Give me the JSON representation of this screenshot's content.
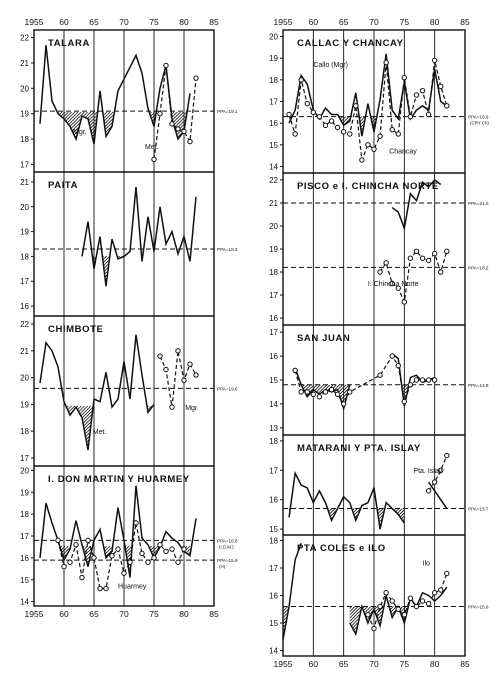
{
  "chart_data": [
    {
      "type": "line",
      "title": "TALARA",
      "ylim": [
        16.7,
        22.3
      ],
      "yticks": [
        17,
        18,
        19,
        20,
        21,
        22
      ],
      "ref": {
        "y": 19.1,
        "label": "PPA=19.1"
      },
      "series": [
        {
          "style": "solid",
          "x": [
            1956,
            1957,
            1958,
            1959,
            1960,
            1961,
            1962,
            1963,
            1964,
            1965,
            1966,
            1967,
            1968,
            1969,
            1972,
            1973,
            1974,
            1975,
            1976,
            1977,
            1978,
            1979,
            1980,
            1981
          ],
          "y": [
            18.6,
            21.7,
            19.5,
            19.0,
            18.8,
            18.5,
            18.0,
            18.9,
            18.8,
            17.8,
            19.9,
            18.1,
            18.5,
            19.9,
            21.3,
            20.6,
            19.2,
            18.5,
            20.0,
            20.9,
            18.8,
            18.0,
            18.3,
            19.8
          ]
        },
        {
          "style": "dashed",
          "x": [
            1975,
            1976,
            1977,
            1978,
            1979,
            1980,
            1981,
            1982
          ],
          "y": [
            17.2,
            19.0,
            20.9,
            18.6,
            18.4,
            18.3,
            17.9,
            20.4
          ]
        }
      ],
      "labels": [
        {
          "text": "Mgr.",
          "x": 1961.5,
          "y": 18.2
        },
        {
          "text": "Met.",
          "x": 1973.5,
          "y": 17.6
        }
      ]
    },
    {
      "type": "line",
      "title": "PAITA",
      "ylim": [
        15.6,
        21.4
      ],
      "yticks": [
        16,
        17,
        18,
        19,
        20,
        21
      ],
      "ref": {
        "y": 18.3,
        "label": "PPA=18.3"
      },
      "series": [
        {
          "style": "solid",
          "x": [
            1963,
            1964,
            1965,
            1966,
            1967,
            1968,
            1969,
            1970,
            1971,
            1972,
            1973,
            1974,
            1975,
            1976,
            1977,
            1978,
            1979,
            1980,
            1981,
            1982
          ],
          "y": [
            18.0,
            19.4,
            17.5,
            18.8,
            16.8,
            18.7,
            17.9,
            18.0,
            18.2,
            20.8,
            17.8,
            19.6,
            18.2,
            20.0,
            18.5,
            19.0,
            18.1,
            18.8,
            17.8,
            20.4
          ]
        }
      ]
    },
    {
      "type": "line",
      "title": "CHIMBOTE",
      "ylim": [
        16.7,
        22.3
      ],
      "yticks": [
        17,
        18,
        19,
        20,
        21,
        22
      ],
      "ref": {
        "y": 19.6,
        "label": "PPA=19.6"
      },
      "series": [
        {
          "style": "solid",
          "x": [
            1956,
            1957,
            1958,
            1959,
            1960,
            1961,
            1962,
            1963,
            1964,
            1965,
            1966,
            1967,
            1968,
            1969,
            1970,
            1971,
            1972,
            1973,
            1974,
            1975
          ],
          "y": [
            19.8,
            21.3,
            21.0,
            20.4,
            19.1,
            18.6,
            18.9,
            18.5,
            17.3,
            19.2,
            19.1,
            20.2,
            18.9,
            19.2,
            20.6,
            19.2,
            21.6,
            20.1,
            18.7,
            19.0
          ]
        },
        {
          "style": "dashed",
          "x": [
            1976,
            1977,
            1978,
            1979,
            1980,
            1981,
            1982
          ],
          "y": [
            20.8,
            20.3,
            18.9,
            21.0,
            19.9,
            20.5,
            20.1
          ]
        }
      ],
      "labels": [
        {
          "text": "Met.",
          "x": 1964.8,
          "y": 17.9
        },
        {
          "text": "Mgr.",
          "x": 1980.2,
          "y": 18.8
        }
      ]
    },
    {
      "type": "line",
      "title": "I. DON MARTIN Y HUARMEY",
      "ylim": [
        13.8,
        20.2
      ],
      "yticks": [
        14,
        15,
        16,
        17,
        18,
        19,
        20
      ],
      "ref": [
        {
          "y": 16.8,
          "label": "PPA=16.8",
          "sub": "(I.D.M.)"
        },
        {
          "y": 15.9,
          "label": "PPA=15.9",
          "sub": "(H)"
        }
      ],
      "series": [
        {
          "style": "solid",
          "x": [
            1956,
            1957,
            1958,
            1959,
            1960,
            1961,
            1962,
            1963,
            1964,
            1965,
            1966,
            1967,
            1968,
            1969,
            1970,
            1971,
            1972,
            1973,
            1974,
            1975,
            1976,
            1977,
            1978,
            1979,
            1980,
            1981,
            1982
          ],
          "y": [
            16.0,
            18.5,
            17.6,
            16.8,
            15.9,
            16.4,
            17.7,
            16.6,
            15.6,
            16.8,
            17.3,
            16.0,
            16.3,
            18.3,
            16.8,
            15.1,
            19.3,
            16.9,
            16.6,
            16.0,
            16.5,
            17.2,
            16.9,
            16.7,
            16.3,
            16.1,
            17.8
          ]
        },
        {
          "style": "dashed",
          "x": [
            1959,
            1960,
            1961,
            1962,
            1963,
            1964,
            1965,
            1966,
            1967,
            1968,
            1969,
            1970,
            1971,
            1972,
            1973,
            1974,
            1975,
            1976,
            1977,
            1978,
            1979,
            1980
          ],
          "y": [
            16.8,
            15.6,
            15.8,
            16.6,
            15.1,
            16.8,
            16.0,
            14.6,
            14.6,
            16.1,
            16.4,
            15.3,
            15.8,
            17.6,
            16.2,
            15.8,
            16.0,
            16.6,
            16.3,
            16.4,
            15.8,
            16.4
          ]
        }
      ],
      "labels": [
        {
          "text": "Huarmey",
          "x": 1969.0,
          "y": 14.6
        }
      ]
    },
    {
      "type": "line",
      "title": "CALLAC Y CHANCAY",
      "ylim": [
        13.7,
        20.3
      ],
      "yticks": [
        14,
        15,
        16,
        17,
        18,
        19,
        20
      ],
      "ref": {
        "y": 16.3,
        "label": "PPA=16.3",
        "sub": "(CRY Ch)"
      },
      "series": [
        {
          "style": "solid",
          "x": [
            1956,
            1957,
            1958,
            1959,
            1960,
            1961,
            1962,
            1963,
            1964,
            1965,
            1966,
            1967,
            1968,
            1969,
            1970,
            1971,
            1972,
            1973,
            1974,
            1975,
            1976,
            1977,
            1978,
            1979,
            1980,
            1981,
            1982
          ],
          "y": [
            16.0,
            16.6,
            18.2,
            17.8,
            16.6,
            16.2,
            16.7,
            16.4,
            16.4,
            15.9,
            16.1,
            17.4,
            15.4,
            16.9,
            15.6,
            17.1,
            19.2,
            16.6,
            16.2,
            17.9,
            16.2,
            16.6,
            16.8,
            16.6,
            18.5,
            17.0,
            16.8
          ]
        },
        {
          "style": "dashed",
          "x": [
            1956,
            1957,
            1958,
            1959,
            1960,
            1961,
            1962,
            1963,
            1964,
            1965,
            1966,
            1967,
            1968,
            1969,
            1970,
            1971,
            1972,
            1973,
            1974,
            1975,
            1976,
            1977,
            1978,
            1979,
            1980,
            1981,
            1982
          ],
          "y": [
            16.4,
            15.5,
            18.0,
            16.9,
            16.5,
            16.3,
            15.9,
            16.1,
            15.8,
            15.6,
            15.5,
            16.8,
            14.3,
            15.0,
            14.8,
            15.4,
            18.8,
            15.7,
            15.5,
            18.1,
            16.3,
            17.3,
            17.5,
            16.4,
            18.9,
            17.7,
            16.8
          ]
        }
      ],
      "labels": [
        {
          "text": "Callo (Mgr)",
          "x": 1960.0,
          "y": 18.6
        },
        {
          "text": "Chancay",
          "x": 1972.5,
          "y": 14.6
        }
      ]
    },
    {
      "type": "line",
      "title": "PISCO e I. CHINCHA NORTE",
      "ylim": [
        15.7,
        22.3
      ],
      "yticks": [
        16,
        17,
        18,
        19,
        20,
        21,
        22
      ],
      "ref": [
        {
          "y": 21.0,
          "label": "PPA=21.0"
        },
        {
          "y": 18.2,
          "label": "PPA=18.2"
        }
      ],
      "series": [
        {
          "style": "solid",
          "x": [
            1973,
            1974,
            1975,
            1976,
            1977,
            1978,
            1979,
            1980,
            1981
          ],
          "y": [
            20.8,
            20.6,
            19.9,
            21.4,
            21.1,
            21.9,
            21.7,
            22.0,
            21.8
          ]
        },
        {
          "style": "dashed",
          "x": [
            1971,
            1972,
            1973,
            1974,
            1975,
            1976,
            1977,
            1978,
            1979,
            1980,
            1981,
            1982
          ],
          "y": [
            18.0,
            18.4,
            17.5,
            17.3,
            16.7,
            18.6,
            18.9,
            18.6,
            18.5,
            18.8,
            18.0,
            18.9
          ]
        }
      ],
      "labels": [
        {
          "text": "I. Chincha Norte",
          "x": 1969.0,
          "y": 17.4
        }
      ]
    },
    {
      "type": "line",
      "title": "SAN JUAN",
      "ylim": [
        12.7,
        17.3
      ],
      "yticks": [
        13,
        14,
        15,
        16,
        17
      ],
      "ref": {
        "y": 14.8,
        "label": "PPA=14.8"
      },
      "series": [
        {
          "style": "solid",
          "x": [
            1957,
            1958,
            1959,
            1960,
            1961,
            1962,
            1963,
            1964,
            1965,
            1966
          ],
          "y": [
            15.5,
            14.8,
            14.3,
            14.6,
            14.4,
            14.6,
            14.5,
            14.6,
            13.8,
            14.8
          ]
        },
        {
          "style": "solid",
          "x": [
            1973,
            1974,
            1975,
            1976,
            1977,
            1978,
            1979,
            1980
          ],
          "y": [
            16.1,
            15.9,
            13.9,
            15.1,
            15.2,
            14.9,
            15.0,
            15.1
          ]
        },
        {
          "style": "dashed",
          "x": [
            1957,
            1958,
            1959,
            1960,
            1961,
            1962,
            1963,
            1964,
            1965,
            1966,
            1971,
            1973,
            1974,
            1975,
            1976,
            1977,
            1978,
            1979,
            1980
          ],
          "y": [
            15.4,
            14.5,
            14.5,
            14.4,
            14.3,
            14.5,
            14.6,
            14.4,
            14.0,
            14.5,
            15.2,
            16.0,
            15.6,
            14.1,
            14.8,
            15.0,
            15.0,
            15.0,
            15.0
          ]
        }
      ]
    },
    {
      "type": "line",
      "title": "MATARANI Y PTA. ISLAY",
      "ylim": [
        14.8,
        18.2
      ],
      "yticks": [
        15,
        16,
        17,
        18
      ],
      "ref": {
        "y": 15.7,
        "label": "PPA=15.7"
      },
      "series": [
        {
          "style": "solid",
          "x": [
            1956,
            1957,
            1958,
            1959,
            1960,
            1961,
            1962,
            1963,
            1964,
            1965,
            1966,
            1967,
            1968,
            1969,
            1970,
            1971,
            1972,
            1973,
            1974,
            1975
          ],
          "y": [
            15.4,
            16.9,
            16.5,
            16.4,
            15.9,
            16.3,
            15.9,
            15.3,
            15.7,
            16.1,
            15.9,
            15.3,
            15.8,
            15.9,
            16.4,
            15.0,
            15.9,
            15.7,
            15.5,
            15.2
          ]
        },
        {
          "style": "solid",
          "x": [
            1979,
            1980,
            1981,
            1982
          ],
          "y": [
            16.6,
            16.3,
            16.0,
            15.7
          ]
        },
        {
          "style": "dashed",
          "x": [
            1979,
            1980,
            1981,
            1982
          ],
          "y": [
            16.3,
            16.6,
            17.0,
            17.5
          ]
        }
      ],
      "labels": [
        {
          "text": "Pta. Islay",
          "x": 1976.5,
          "y": 16.9
        }
      ]
    },
    {
      "type": "line",
      "title": "PTA COLES e ILO",
      "ylim": [
        13.8,
        18.2
      ],
      "yticks": [
        14,
        15,
        16,
        17,
        18
      ],
      "ref": {
        "y": 15.6,
        "label": "PPA=15.6"
      },
      "series": [
        {
          "style": "solid",
          "x": [
            1955,
            1956,
            1957,
            1958
          ],
          "y": [
            14.4,
            15.6,
            17.3,
            17.9
          ]
        },
        {
          "style": "solid",
          "x": [
            1966,
            1967,
            1968,
            1969,
            1970,
            1971,
            1972,
            1973,
            1974,
            1975,
            1976,
            1977,
            1978,
            1979,
            1980,
            1981,
            1982
          ],
          "y": [
            15.0,
            14.6,
            15.6,
            15.0,
            15.5,
            14.9,
            16.0,
            15.2,
            15.6,
            15.0,
            15.9,
            15.6,
            16.1,
            16.0,
            15.8,
            16.0,
            16.3
          ]
        },
        {
          "style": "dashed",
          "x": [
            1969,
            1970,
            1971,
            1972,
            1973,
            1974,
            1975,
            1976,
            1977,
            1978,
            1979,
            1980,
            1981,
            1982
          ],
          "y": [
            15.3,
            14.8,
            15.6,
            16.1,
            15.8,
            15.5,
            15.3,
            15.9,
            15.6,
            15.8,
            15.7,
            16.1,
            16.2,
            16.8
          ]
        }
      ],
      "labels": [
        {
          "text": "Ilo",
          "x": 1978.0,
          "y": 17.1
        }
      ]
    }
  ],
  "x_axis": {
    "range": [
      1955,
      1985
    ],
    "ticks": [
      1955,
      60,
      65,
      70,
      75,
      80,
      85
    ],
    "tick_values": [
      1955,
      1960,
      1965,
      1970,
      1975,
      1980,
      1985
    ],
    "gridlines": [
      1960,
      1965,
      1970,
      1975,
      1980
    ]
  },
  "colors": {
    "ink": "#111111",
    "background": "#ffffff"
  }
}
